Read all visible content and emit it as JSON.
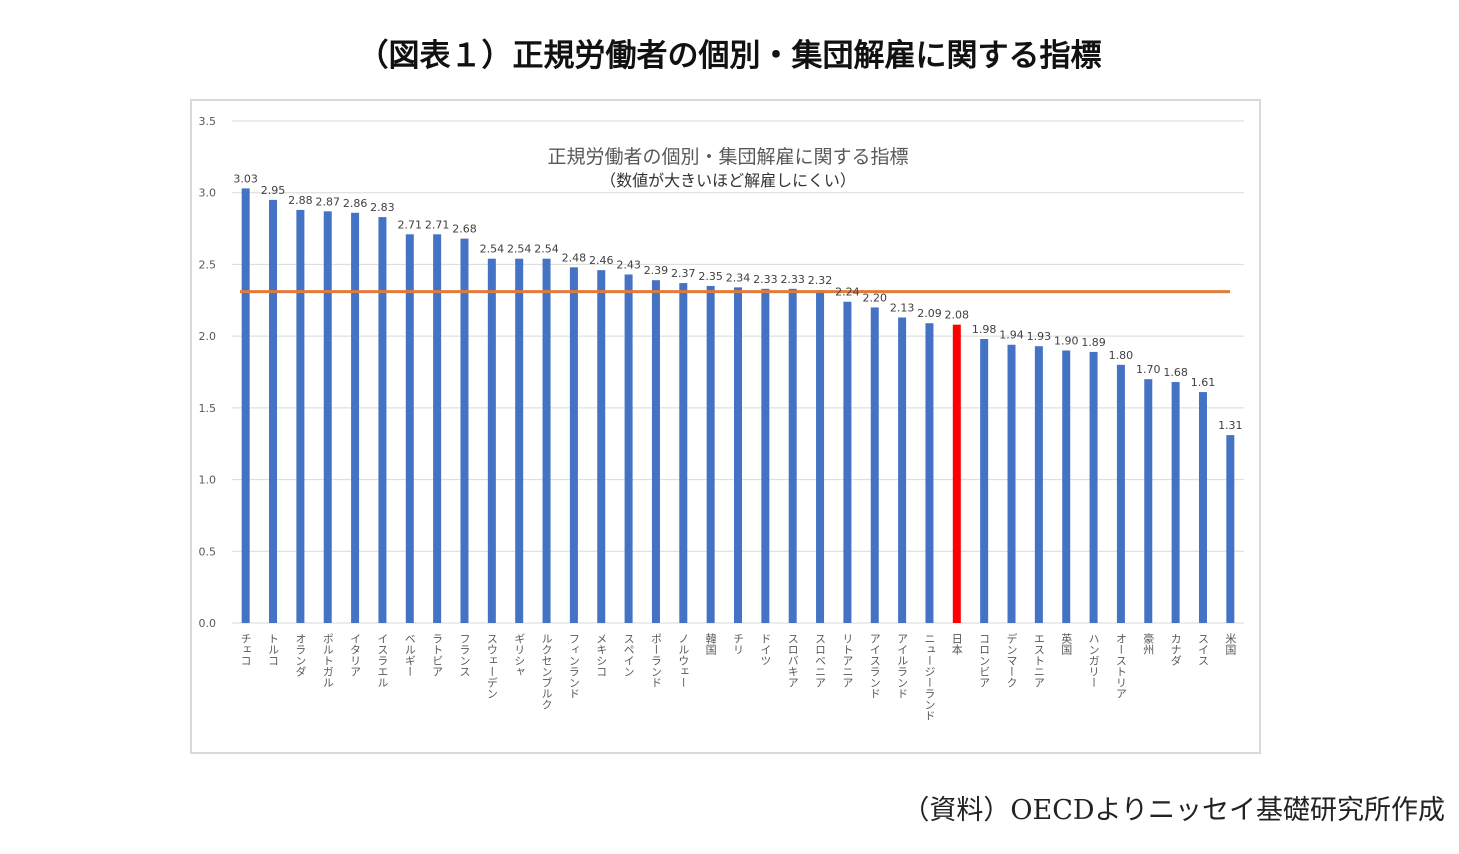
{
  "page": {
    "title": "（図表１）正規労働者の個別・集団解雇に関する指標",
    "source": "（資料）OECDよりニッセイ基礎研究所作成"
  },
  "chart_data": {
    "type": "bar",
    "title": "正規労働者の個別・集団解雇に関する指標",
    "subtitle": "（数値が大きいほど解雇しにくい）",
    "xlabel": "",
    "ylabel": "",
    "ylim": [
      0,
      3.5
    ],
    "yticks": [
      "0.0",
      "0.5",
      "1.0",
      "1.5",
      "2.0",
      "2.5",
      "3.0",
      "3.5"
    ],
    "grid": true,
    "categories": [
      "チェコ",
      "トルコ",
      "オランダ",
      "ポルトガル",
      "イタリア",
      "イスラエル",
      "ベルギー",
      "ラトビア",
      "フランス",
      "スウェーデン",
      "ギリシャ",
      "ルクセンブルク",
      "フィンランド",
      "メキシコ",
      "スペイン",
      "ポーランド",
      "ノルウェー",
      "韓国",
      "チリ",
      "ドイツ",
      "スロバキア",
      "スロベニア",
      "リトアニア",
      "アイスランド",
      "アイルランド",
      "ニュージーランド",
      "日本",
      "コロンビア",
      "デンマーク",
      "エストニア",
      "英国",
      "ハンガリー",
      "オーストリア",
      "豪州",
      "カナダ",
      "スイス",
      "米国"
    ],
    "values": [
      3.03,
      2.95,
      2.88,
      2.87,
      2.86,
      2.83,
      2.71,
      2.71,
      2.68,
      2.54,
      2.54,
      2.54,
      2.48,
      2.46,
      2.43,
      2.39,
      2.37,
      2.35,
      2.34,
      2.33,
      2.33,
      2.32,
      2.24,
      2.2,
      2.13,
      2.09,
      2.08,
      1.98,
      1.94,
      1.93,
      1.9,
      1.89,
      1.8,
      1.7,
      1.68,
      1.61,
      1.31
    ],
    "value_labels": [
      "3.03",
      "2.95",
      "2.88",
      "2.87",
      "2.86",
      "2.83",
      "2.71",
      "2.71",
      "2.68",
      "2.54",
      "2.54",
      "2.54",
      "2.48",
      "2.46",
      "2.43",
      "2.39",
      "2.37",
      "2.35",
      "2.34",
      "2.33",
      "2.33",
      "2.32",
      "2.24",
      "2.20",
      "2.13",
      "2.09",
      "2.08",
      "1.98",
      "1.94",
      "1.93",
      "1.90",
      "1.89",
      "1.80",
      "1.70",
      "1.68",
      "1.61",
      "1.31"
    ],
    "highlight_category": "日本",
    "reference_line": {
      "value": 2.31,
      "color": "#e07b39"
    },
    "colors": {
      "bar": "#4472c4",
      "highlight": "#ff0000",
      "grid": "#d9d9d9",
      "text": "#595959"
    }
  }
}
